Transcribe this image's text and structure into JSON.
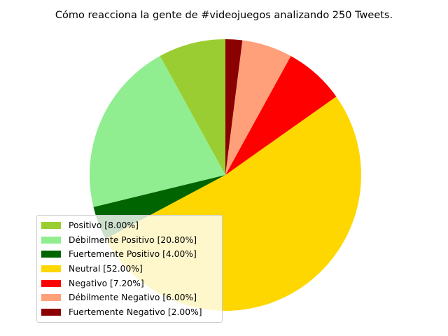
{
  "chart_data": {
    "type": "pie",
    "title": "Cómo reacciona la gente de #videojuegos analizando 250 Tweets.",
    "start_angle_deg": 90,
    "direction": "counterclockwise",
    "legend_position": "lower-left",
    "slices": [
      {
        "label": "Positivo [8.00%]",
        "value": 8.0,
        "color": "#9acd32"
      },
      {
        "label": "Débilmente Positivo [20.80%]",
        "value": 20.8,
        "color": "#90ee90"
      },
      {
        "label": "Fuertemente Positivo [4.00%]",
        "value": 4.0,
        "color": "#006400"
      },
      {
        "label": "Neutral [52.00%]",
        "value": 52.0,
        "color": "#ffd700"
      },
      {
        "label": "Negativo [7.20%]",
        "value": 7.2,
        "color": "#ff0000"
      },
      {
        "label": "Débilmente Negativo [6.00%]",
        "value": 6.0,
        "color": "#ffa07a"
      },
      {
        "label": "Fuertemente Negativo [2.00%]",
        "value": 2.0,
        "color": "#8b0000"
      }
    ]
  }
}
